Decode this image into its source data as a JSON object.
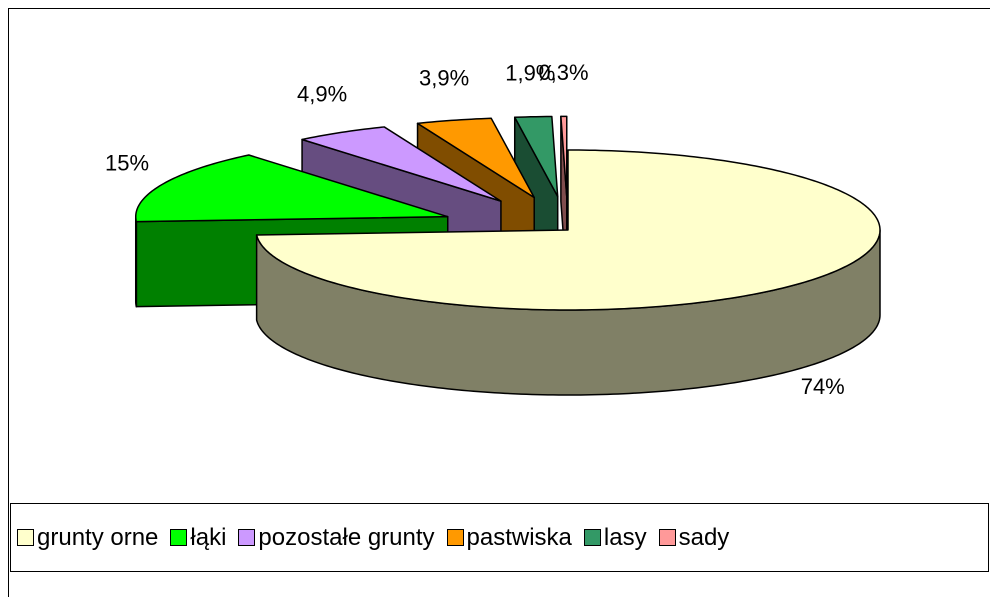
{
  "chart_data": {
    "type": "pie",
    "categories": [
      "grunty orne",
      "łąki",
      "pozostałe grunty",
      "pastwiska",
      "lasy",
      "sady"
    ],
    "values": [
      74,
      15,
      4.9,
      3.9,
      1.9,
      0.3
    ],
    "value_labels": [
      "74%",
      "15%",
      "4,9%",
      "3,9%",
      "1,9%",
      "0,3%"
    ],
    "colors": [
      "#ffffcc",
      "#00ff00",
      "#cc99ff",
      "#ff9900",
      "#339966",
      "#ff9999"
    ],
    "legend": "bottom"
  }
}
